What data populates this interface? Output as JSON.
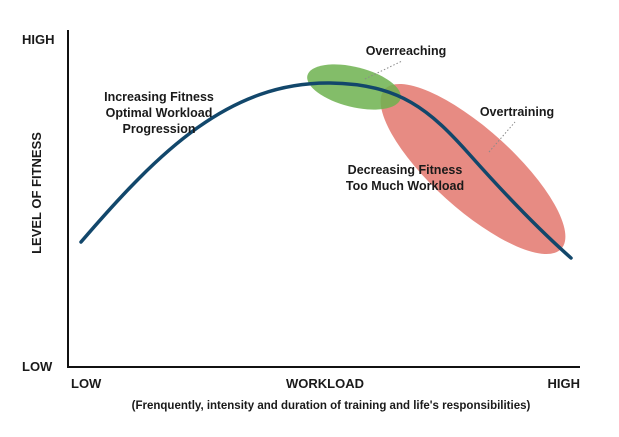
{
  "y_axis": {
    "label": "LEVEL OF FITNESS",
    "top_label": "HIGH",
    "bottom_label": "LOW"
  },
  "x_axis": {
    "left_label": "LOW",
    "center_label": "WORKLOAD",
    "right_label": "HIGH",
    "caption": "(Frenquently, intensity and duration of training and life's responsibilities)"
  },
  "regions": {
    "increasing": {
      "line1": "Increasing Fitness",
      "line2": "Optimal Workload",
      "line3": "Progression"
    },
    "overreaching": {
      "label": "Overreaching",
      "color": "#6db24f"
    },
    "overtraining": {
      "label": "Overtraining",
      "color": "#e06a60"
    },
    "decreasing": {
      "line1": "Decreasing Fitness",
      "line2": "Too Much Workload"
    }
  },
  "colors": {
    "axis": "#111111",
    "curve": "#12476b",
    "leader": "#8a8a8a"
  }
}
